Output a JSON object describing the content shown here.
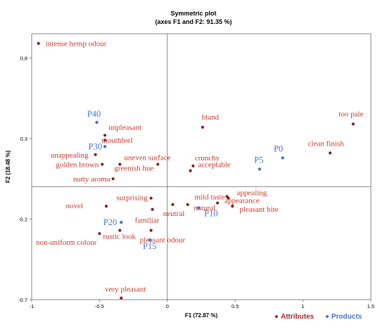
{
  "chart_data": {
    "type": "scatter",
    "title": "Symmetric plot",
    "subtitle": "(axes F1 and F2: 91.35 %)",
    "xlabel": "F1 (72.87 %)",
    "ylabel": "F2 (18.48 %)",
    "xlim": [
      -1,
      1.5
    ],
    "ylim": [
      -0.7,
      0.95
    ],
    "xticks": [
      -1,
      -0.5,
      0,
      0.5,
      1,
      1.5
    ],
    "xtick_labels": [
      "-1",
      "-0.5",
      "0",
      "0.5",
      "1",
      "1.5"
    ],
    "yticks": [
      -0.7,
      -0.2,
      0.3,
      0.8
    ],
    "ytick_labels": [
      "-0.7",
      "-0.2",
      "0.3",
      "0.8"
    ],
    "grid": false,
    "legend": {
      "placement": "bottom-right",
      "entries": [
        {
          "label": "Attributes",
          "color": "#a52a2a"
        },
        {
          "label": "Products",
          "color": "#4a72c8"
        }
      ]
    },
    "colors": {
      "attributes_point": "#8b1a1a",
      "attributes_label": "#c0392b",
      "products": "#4a72c8"
    },
    "series": [
      {
        "name": "Attributes",
        "points": [
          {
            "label": "intense hemp odour",
            "x": -0.95,
            "y": 0.89
          },
          {
            "label": "too pale",
            "x": 1.37,
            "y": 0.39
          },
          {
            "label": "bland",
            "x": 0.26,
            "y": 0.37
          },
          {
            "label": "unpleasant",
            "x": -0.46,
            "y": 0.32
          },
          {
            "label": "mouthfeel",
            "x": -0.46,
            "y": 0.29
          },
          {
            "label": "clean finish",
            "x": 1.2,
            "y": 0.21
          },
          {
            "label": "unappealing",
            "x": -0.53,
            "y": 0.2
          },
          {
            "label": "golden brown",
            "x": -0.48,
            "y": 0.14
          },
          {
            "label": "uneven surface",
            "x": -0.35,
            "y": 0.14
          },
          {
            "label": "crunchy",
            "x": 0.19,
            "y": 0.13
          },
          {
            "label": "acceptable",
            "x": 0.17,
            "y": 0.1
          },
          {
            "label": "greenish hue",
            "x": -0.07,
            "y": 0.14
          },
          {
            "label": "nutty aroma",
            "x": -0.4,
            "y": 0.05
          },
          {
            "label": "mild taste",
            "x": 0.44,
            "y": -0.06
          },
          {
            "label": "appealing",
            "x": 0.45,
            "y": -0.07
          },
          {
            "label": "appearance",
            "x": 0.37,
            "y": -0.1
          },
          {
            "label": "pleasant bite",
            "x": 0.48,
            "y": -0.12
          },
          {
            "label": "surprising",
            "x": -0.12,
            "y": -0.07
          },
          {
            "label": "novel",
            "x": -0.45,
            "y": -0.12
          },
          {
            "label": "neutral",
            "x": 0.15,
            "y": -0.11
          },
          {
            "label": "familiar",
            "x": -0.11,
            "y": -0.14
          },
          {
            "label": "natural",
            "x": 0.04,
            "y": -0.11
          },
          {
            "label": "pleasant odour",
            "x": -0.12,
            "y": -0.27
          },
          {
            "label": "rustic look",
            "x": -0.35,
            "y": -0.27
          },
          {
            "label": "non-uniform colour",
            "x": -0.5,
            "y": -0.29
          },
          {
            "label": "very pleasant",
            "x": -0.34,
            "y": -0.69
          }
        ]
      },
      {
        "name": "Products",
        "points": [
          {
            "label": "P40",
            "x": -0.52,
            "y": 0.4
          },
          {
            "label": "P30",
            "x": -0.46,
            "y": 0.25
          },
          {
            "label": "P0",
            "x": 0.85,
            "y": 0.18
          },
          {
            "label": "P5",
            "x": 0.68,
            "y": 0.11
          },
          {
            "label": "P10",
            "x": 0.23,
            "y": -0.13
          },
          {
            "label": "P20",
            "x": -0.34,
            "y": -0.22
          },
          {
            "label": "P15",
            "x": -0.13,
            "y": -0.33
          }
        ]
      }
    ]
  }
}
